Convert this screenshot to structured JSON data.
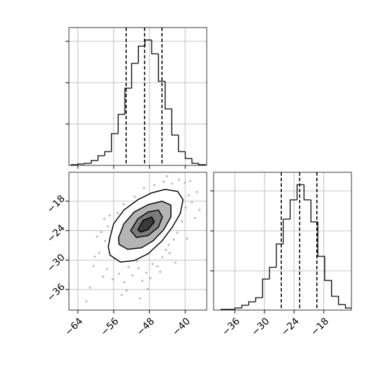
{
  "chart_data": [
    {
      "type": "histogram",
      "color": "#000000",
      "grid": true,
      "tick_labels": false,
      "bins": [
        -65.5,
        -64,
        -62.5,
        -61,
        -59.5,
        -58,
        -56.5,
        -55,
        -53.5,
        -52,
        -50.5,
        -49,
        -47.5,
        -46,
        -44.5,
        -43,
        -41.5,
        -40,
        -38.5,
        -37,
        -35.5
      ],
      "counts": [
        1,
        2,
        3,
        7,
        14,
        20,
        46,
        74,
        112,
        148,
        173,
        182,
        162,
        122,
        82,
        44,
        20,
        10,
        3,
        1
      ],
      "quantiles": [
        -53.2,
        -49.1,
        -45.2
      ],
      "xlim": [
        -66,
        -35.2
      ],
      "xticks": [
        -64,
        -56,
        -48,
        -40
      ],
      "ylim": [
        0,
        200
      ],
      "yticks": [
        60,
        120,
        180
      ]
    },
    {
      "type": "scatter",
      "grid": true,
      "tick_labels": true,
      "color": "#888888",
      "x": [
        -60.5,
        -59.2,
        -58.4,
        -57.9,
        -58.8,
        -61.3,
        -57.5,
        -56.2,
        -55.4,
        -56.9,
        -54.8,
        -53.6,
        -55.9,
        -52.7,
        -51.8,
        -53.1,
        -50.4,
        -49.6,
        -48.7,
        -47.3,
        -46.2,
        -45.1,
        -44.3,
        -43.5,
        -42.6,
        -41.8,
        -40.7,
        -39.9,
        -39.2,
        -38.5,
        -40.1,
        -41.4,
        -42.9,
        -44.8,
        -39.6,
        -37.8,
        -43.7,
        -46.9,
        -49.2,
        -51.3,
        -53.8,
        -55.1,
        -57.3,
        -59.7,
        -54.2,
        -52.4,
        -50.1,
        -47.8,
        -45.6,
        -38.9,
        -37.4,
        -42.2,
        -36.8,
        -56.6,
        -58.1,
        -60.2,
        -62.1,
        -48.4,
        -50.8,
        -44.1
      ],
      "y": [
        -31.2,
        -28.5,
        -33.4,
        -26.1,
        -24.3,
        -35.6,
        -31.8,
        -33.9,
        -22.7,
        -20.9,
        -32.8,
        -34.5,
        -29.6,
        -31.4,
        -33.1,
        -36.2,
        -31.7,
        -34.2,
        -32.6,
        -30.8,
        -31.3,
        -29.4,
        -27.9,
        -28.6,
        -25.8,
        -24.4,
        -22.1,
        -19.3,
        -16.8,
        -18.2,
        -14.2,
        -13.6,
        -14.4,
        -14.0,
        -25.6,
        -21.4,
        -26.9,
        -14.7,
        -15.3,
        -17.1,
        -18.6,
        -20.4,
        -23.1,
        -25.2,
        -37.1,
        -28.9,
        -37.8,
        -33.7,
        -32.4,
        -13.9,
        -16.1,
        -30.5,
        -19.8,
        -27.7,
        -21.6,
        -29.3,
        -38.4,
        -35.9,
        -30.2,
        -12.9
      ],
      "contours": [
        {
          "fill": "#ffffff",
          "x": [
            -56.8,
            -56.0,
            -53.7,
            -50.6,
            -47.5,
            -44.5,
            -41.7,
            -40.5,
            -41.1,
            -42.9,
            -45.2,
            -48.3,
            -51.4,
            -54.5,
            -56.8,
            -57.2
          ],
          "y": [
            -25.4,
            -22.6,
            -19.8,
            -17.7,
            -16.3,
            -15.6,
            -16.0,
            -17.7,
            -20.5,
            -23.3,
            -26.1,
            -28.7,
            -30.1,
            -30.4,
            -29.0,
            -27.3
          ]
        },
        {
          "fill": "#b4b4b4",
          "x": [
            -54.9,
            -53.7,
            -51.4,
            -48.3,
            -45.2,
            -43.2,
            -43.2,
            -44.8,
            -47.2,
            -49.8,
            -52.9,
            -54.8
          ],
          "y": [
            -25.4,
            -22.6,
            -20.2,
            -18.7,
            -18.0,
            -18.8,
            -21.2,
            -23.8,
            -26.1,
            -27.5,
            -27.8,
            -26.8
          ]
        },
        {
          "fill": "#7c7c7c",
          "x": [
            -52.2,
            -50.6,
            -48.3,
            -46.0,
            -45.1,
            -46.0,
            -48.3,
            -50.9
          ],
          "y": [
            -24.0,
            -21.6,
            -20.2,
            -19.8,
            -21.2,
            -23.3,
            -25.0,
            -25.4
          ]
        },
        {
          "fill": "#3a3a3a",
          "x": [
            -50.6,
            -49.4,
            -47.5,
            -46.9,
            -48.3,
            -50.0
          ],
          "y": [
            -23.8,
            -21.9,
            -21.2,
            -22.2,
            -23.8,
            -24.3
          ]
        }
      ],
      "xlim": [
        -66,
        -35.2
      ],
      "xticks": [
        {
          "value": -64,
          "label": "−64"
        },
        {
          "value": -56,
          "label": "−56"
        },
        {
          "value": -48,
          "label": "−48"
        },
        {
          "value": -40,
          "label": "−40"
        }
      ],
      "ylim": [
        -40.2,
        -12.1
      ],
      "yticks": [
        {
          "value": -36,
          "label": "−36"
        },
        {
          "value": -30,
          "label": "−30"
        },
        {
          "value": -24,
          "label": "−24"
        },
        {
          "value": -18,
          "label": "−18"
        }
      ]
    },
    {
      "type": "histogram",
      "color": "#000000",
      "grid": true,
      "tick_labels": true,
      "bins": [
        -38.8,
        -37.4,
        -36,
        -34.6,
        -33.2,
        -31.8,
        -30.4,
        -29,
        -27.6,
        -26.2,
        -24.8,
        -23.4,
        -22,
        -20.6,
        -19.2,
        -17.8,
        -16.4,
        -15,
        -13.6,
        -12.2
      ],
      "counts": [
        1,
        1,
        3,
        7,
        12,
        18,
        45,
        62,
        96,
        132,
        160,
        182,
        160,
        128,
        78,
        43,
        20,
        8,
        3
      ],
      "quantiles": [
        -26.6,
        -22.9,
        -19.4
      ],
      "xlim": [
        -40.3,
        -12.4
      ],
      "xticks": [
        {
          "value": -36,
          "label": "−36"
        },
        {
          "value": -30,
          "label": "−30"
        },
        {
          "value": -24,
          "label": "−24"
        },
        {
          "value": -18,
          "label": "−18"
        }
      ],
      "ylim": [
        0,
        200
      ],
      "yticks": [
        57,
        115,
        173
      ]
    }
  ]
}
